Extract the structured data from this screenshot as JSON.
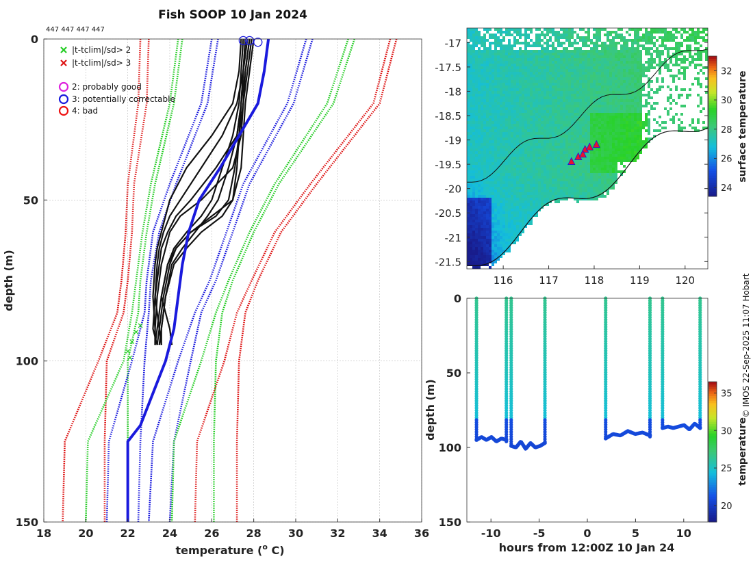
{
  "chart_data": [
    {
      "type": "line",
      "title": "Fish SOOP 10 Jan 2024",
      "header_ids": "447 447 447 447",
      "xlabel": "temperature (",
      "xlabel_sup": "o",
      "xlabel_end": " C)",
      "ylabel": "depth (m)",
      "xlim": [
        18,
        36
      ],
      "ylim": [
        150,
        0
      ],
      "xticks": [
        "18",
        "20",
        "22",
        "24",
        "26",
        "28",
        "30",
        "32",
        "34",
        "36"
      ],
      "yticks": [
        "0",
        "50",
        "100",
        "150"
      ],
      "legend": [
        {
          "marker": "x",
          "color": "#22cc22",
          "label": "|t-tclim|/sd> 2"
        },
        {
          "marker": "x",
          "color": "#dd1111",
          "label": "|t-tclim|/sd> 3"
        },
        {
          "marker": "o",
          "color": "#dd22dd",
          "label": "2: probably good"
        },
        {
          "marker": "o",
          "color": "#1a1add",
          "label": "3: potentially correctable"
        },
        {
          "marker": "o",
          "color": "#ee1111",
          "label": "4: bad"
        }
      ],
      "climatology": [
        {
          "name": "red-inner",
          "color": "#dd1111",
          "depth": [
            0,
            20,
            45,
            60,
            75,
            85,
            100,
            125,
            150
          ],
          "temp": [
            23.0,
            22.9,
            22.3,
            22.2,
            22.0,
            21.8,
            21.0,
            20.9,
            20.9
          ]
        },
        {
          "name": "red-inner-b",
          "color": "#dd1111",
          "depth": [
            0,
            20,
            45,
            60,
            75,
            85,
            100,
            125,
            150
          ],
          "temp": [
            22.6,
            22.5,
            22.0,
            21.9,
            21.7,
            21.5,
            20.6,
            19.0,
            18.9
          ]
        },
        {
          "name": "green-inner",
          "color": "#22cc22",
          "depth": [
            0,
            20,
            45,
            60,
            75,
            85,
            100,
            125,
            150
          ],
          "temp": [
            24.6,
            24.2,
            23.3,
            22.9,
            22.6,
            22.5,
            22.0,
            22.0,
            22.0
          ]
        },
        {
          "name": "green-inner-b",
          "color": "#22cc22",
          "depth": [
            0,
            20,
            45,
            60,
            75,
            85,
            100,
            125,
            150
          ],
          "temp": [
            24.4,
            24.0,
            23.1,
            22.7,
            22.4,
            22.2,
            21.8,
            20.1,
            20.0
          ]
        },
        {
          "name": "blue-inner",
          "color": "#1a1add",
          "depth": [
            0,
            20,
            45,
            60,
            75,
            85,
            100,
            125,
            150
          ],
          "temp": [
            26.3,
            25.8,
            24.3,
            23.5,
            23.1,
            23.0,
            22.8,
            22.6,
            22.5
          ]
        },
        {
          "name": "blue-inner-b",
          "color": "#1a1add",
          "depth": [
            0,
            20,
            45,
            60,
            75,
            85,
            100,
            125,
            150
          ],
          "temp": [
            26.0,
            25.5,
            24.0,
            23.2,
            22.9,
            22.8,
            22.2,
            21.1,
            21.0
          ]
        },
        {
          "name": "blue-outer",
          "color": "#1a1add",
          "depth": [
            0,
            20,
            45,
            60,
            75,
            85,
            100,
            125,
            150
          ],
          "temp": [
            30.8,
            29.9,
            27.8,
            27.0,
            26.2,
            25.5,
            25.0,
            24.2,
            24.0
          ]
        },
        {
          "name": "blue-outer-b",
          "color": "#1a1add",
          "depth": [
            0,
            20,
            45,
            60,
            75,
            85,
            100,
            125,
            150
          ],
          "temp": [
            30.5,
            29.6,
            27.5,
            26.7,
            25.9,
            25.2,
            24.4,
            23.2,
            23.0
          ]
        },
        {
          "name": "green-outer",
          "color": "#22cc22",
          "depth": [
            0,
            20,
            45,
            60,
            75,
            85,
            100,
            125,
            150
          ],
          "temp": [
            32.8,
            31.8,
            29.2,
            28.0,
            27.0,
            26.5,
            26.2,
            26.1,
            26.1
          ]
        },
        {
          "name": "green-outer-b",
          "color": "#22cc22",
          "depth": [
            0,
            20,
            45,
            60,
            75,
            85,
            100,
            125,
            150
          ],
          "temp": [
            32.5,
            31.5,
            29.0,
            27.8,
            26.8,
            26.2,
            25.5,
            24.2,
            24.1
          ]
        },
        {
          "name": "red-outer",
          "color": "#dd1111",
          "depth": [
            0,
            20,
            45,
            60,
            75,
            85,
            100,
            125,
            150
          ],
          "temp": [
            34.8,
            34.0,
            31.0,
            29.3,
            28.2,
            27.6,
            27.3,
            27.2,
            27.2
          ]
        },
        {
          "name": "red-outer-b",
          "color": "#dd1111",
          "depth": [
            0,
            20,
            45,
            60,
            75,
            85,
            100,
            125,
            150
          ],
          "temp": [
            34.5,
            33.7,
            30.7,
            29.0,
            27.9,
            27.2,
            26.6,
            25.3,
            25.2
          ]
        }
      ],
      "profiles": [
        {
          "depth": [
            0,
            10,
            20,
            30,
            40,
            50,
            55,
            60,
            65,
            70,
            80,
            90,
            95
          ],
          "temp": [
            27.8,
            27.6,
            27.5,
            27.4,
            27.0,
            25.5,
            24.5,
            24.0,
            23.8,
            23.6,
            23.4,
            23.3,
            23.3
          ]
        },
        {
          "depth": [
            0,
            10,
            20,
            30,
            40,
            50,
            55,
            60,
            65,
            70,
            80,
            90,
            95
          ],
          "temp": [
            27.6,
            27.5,
            27.4,
            27.2,
            26.2,
            25.0,
            24.3,
            23.9,
            23.6,
            23.5,
            23.3,
            23.2,
            23.4
          ]
        },
        {
          "depth": [
            0,
            10,
            20,
            30,
            40,
            50,
            55,
            60,
            65,
            70,
            80,
            90,
            95
          ],
          "temp": [
            27.9,
            27.7,
            27.5,
            27.3,
            27.2,
            27.0,
            26.5,
            25.5,
            24.8,
            24.2,
            23.8,
            23.6,
            23.5
          ]
        },
        {
          "depth": [
            0,
            10,
            20,
            30,
            40,
            50,
            55,
            60,
            65,
            70,
            80,
            90,
            95
          ],
          "temp": [
            28.0,
            27.8,
            27.6,
            27.5,
            27.4,
            27.0,
            26.0,
            25.0,
            24.3,
            24.0,
            23.7,
            23.5,
            23.4
          ]
        },
        {
          "depth": [
            0,
            10,
            20,
            30,
            40,
            50,
            55,
            60,
            65,
            70,
            80,
            90,
            95
          ],
          "temp": [
            27.7,
            27.5,
            27.2,
            26.5,
            25.5,
            24.5,
            24.0,
            23.7,
            23.5,
            23.4,
            23.3,
            23.5,
            23.6
          ]
        },
        {
          "depth": [
            0,
            10,
            20,
            30,
            40,
            50,
            55,
            60,
            65,
            70,
            80,
            90,
            95
          ],
          "temp": [
            27.5,
            27.4,
            27.3,
            27.0,
            26.5,
            26.0,
            25.5,
            24.8,
            24.2,
            23.9,
            23.6,
            23.4,
            23.3
          ]
        },
        {
          "depth": [
            0,
            10,
            20,
            30,
            40,
            50,
            55,
            60,
            65,
            70,
            80,
            90,
            95
          ],
          "temp": [
            27.6,
            27.5,
            27.4,
            27.3,
            27.1,
            26.8,
            26.2,
            25.0,
            24.3,
            23.9,
            23.6,
            24.0,
            24.1
          ]
        },
        {
          "depth": [
            0,
            10,
            20,
            30,
            40,
            50,
            55,
            60,
            65,
            70,
            80,
            90,
            95
          ],
          "temp": [
            27.8,
            27.6,
            27.4,
            27.2,
            26.8,
            26.3,
            25.8,
            25.2,
            24.6,
            24.1,
            23.8,
            23.6,
            23.6
          ]
        },
        {
          "depth": [
            0,
            10,
            20,
            30,
            40,
            50,
            55,
            60,
            65,
            70,
            80,
            90,
            95
          ],
          "temp": [
            27.4,
            27.3,
            27.0,
            26.0,
            24.8,
            24.0,
            23.8,
            23.6,
            23.4,
            23.3,
            23.2,
            23.3,
            23.3
          ]
        }
      ],
      "mean_profile": {
        "color": "#1a1add",
        "depth": [
          0,
          10,
          20,
          30,
          40,
          50,
          60,
          70,
          80,
          90,
          100,
          110,
          120,
          125,
          130,
          150
        ],
        "temp": [
          28.7,
          28.5,
          28.2,
          27.3,
          26.4,
          25.4,
          24.9,
          24.6,
          24.4,
          24.2,
          23.8,
          23.2,
          22.6,
          22.0,
          22.0,
          22.0
        ]
      },
      "qc_circles": [
        {
          "temp": 27.5,
          "depth": 0.5
        },
        {
          "temp": 27.8,
          "depth": 0.5
        },
        {
          "temp": 28.2,
          "depth": 1
        }
      ],
      "flag_points": [
        {
          "temp": 22.2,
          "depth": 94
        },
        {
          "temp": 22.0,
          "depth": 97
        },
        {
          "temp": 22.4,
          "depth": 91
        },
        {
          "temp": 22.1,
          "depth": 99
        },
        {
          "temp": 22.6,
          "depth": 89
        }
      ]
    },
    {
      "type": "heatmap",
      "xlim": [
        115.2,
        120.5
      ],
      "ylim": [
        -21.65,
        -16.7
      ],
      "xticks": [
        "116",
        "117",
        "118",
        "119",
        "120"
      ],
      "yticks": [
        "-17",
        "-17.5",
        "-18",
        "-18.5",
        "-19",
        "-19.5",
        "-20",
        "-20.5",
        "-21",
        "-21.5"
      ],
      "colorbar_label": "surface temperature",
      "colorbar_ticks": [
        "24",
        "26",
        "28",
        "30",
        "32"
      ],
      "colorbar_range": [
        23.4,
        33.0
      ],
      "track": [
        {
          "lon": 117.5,
          "lat": -19.45
        },
        {
          "lon": 117.65,
          "lat": -19.35
        },
        {
          "lon": 117.8,
          "lat": -19.2
        },
        {
          "lon": 117.9,
          "lat": -19.15
        },
        {
          "lon": 118.05,
          "lat": -19.1
        },
        {
          "lon": 117.75,
          "lat": -19.3
        }
      ]
    },
    {
      "type": "scatter",
      "xlabel": "hours from 12:00Z 10 Jan 24",
      "ylabel": "depth (m)",
      "xlim": [
        -12.5,
        12.5
      ],
      "ylim": [
        150,
        0
      ],
      "xticks": [
        "-10",
        "-5",
        "0",
        "5",
        "10"
      ],
      "yticks": [
        "0",
        "50",
        "100",
        "150"
      ],
      "colorbar_label": "temperature",
      "colorbar_ticks": [
        "20",
        "25",
        "30",
        "35"
      ],
      "colorbar_range": [
        17.8,
        36.5
      ],
      "casts": [
        {
          "hour": -11.5,
          "bottom": 95
        },
        {
          "hour": -8.4,
          "bottom": 96
        },
        {
          "hour": -7.9,
          "bottom": 99
        },
        {
          "hour": -4.4,
          "bottom": 97
        },
        {
          "hour": 1.9,
          "bottom": 94
        },
        {
          "hour": 6.5,
          "bottom": 93
        },
        {
          "hour": 7.8,
          "bottom": 87
        },
        {
          "hour": 11.7,
          "bottom": 87
        }
      ],
      "troughs": [
        {
          "from": -11.5,
          "to": -8.4,
          "depth": [
            95,
            93,
            95,
            93,
            96,
            94,
            95
          ]
        },
        {
          "from": -7.9,
          "to": -4.4,
          "depth": [
            99,
            100,
            96,
            101,
            97,
            100,
            99,
            97
          ]
        },
        {
          "from": 1.9,
          "to": 6.5,
          "depth": [
            94,
            91,
            92,
            89,
            91,
            90,
            92
          ]
        },
        {
          "from": 7.8,
          "to": 11.7,
          "depth": [
            87,
            86,
            87,
            86,
            85,
            88,
            84,
            87
          ]
        }
      ]
    }
  ],
  "side_credit": "© IMOS 22-Sep-2025 11:07 Hobart"
}
